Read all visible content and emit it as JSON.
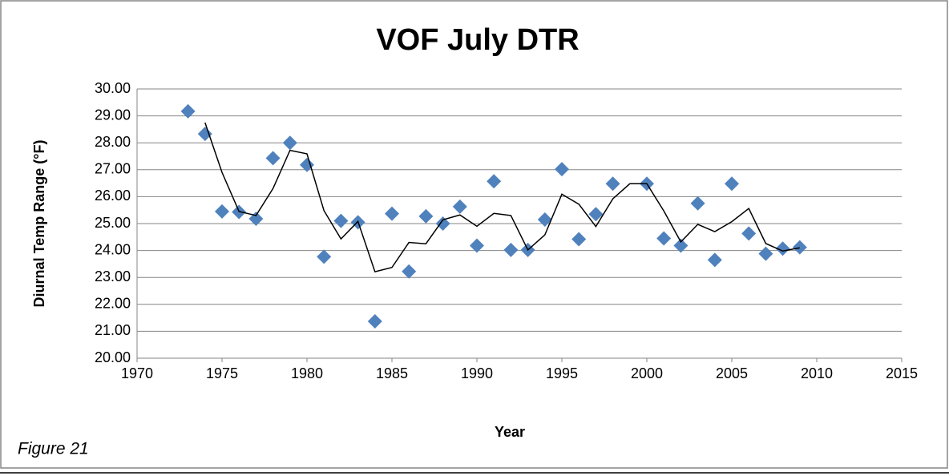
{
  "chart_data": {
    "type": "scatter",
    "title": "VOF July DTR",
    "xlabel": "Year",
    "ylabel": "Diurnal Temp Range (°F)",
    "caption": "Figure 21",
    "x": [
      1973,
      1974,
      1975,
      1976,
      1977,
      1978,
      1979,
      1980,
      1981,
      1982,
      1983,
      1984,
      1985,
      1986,
      1987,
      1988,
      1989,
      1990,
      1991,
      1992,
      1993,
      1994,
      1995,
      1996,
      1997,
      1998,
      1999,
      2000,
      2001,
      2002,
      2003,
      2004,
      2005,
      2006,
      2007,
      2008,
      2009
    ],
    "series": [
      {
        "kind": "points",
        "color": "#4f81bd",
        "values": [
          29.17,
          28.33,
          25.45,
          25.43,
          25.18,
          27.43,
          28.0,
          27.18,
          23.77,
          25.1,
          25.05,
          21.37,
          25.37,
          23.22,
          25.27,
          25.0,
          25.63,
          24.18,
          26.57,
          24.02,
          24.02,
          25.15,
          27.02,
          24.42,
          25.35,
          26.48,
          null,
          26.48,
          24.45,
          24.18,
          25.75,
          23.65,
          26.48,
          24.63,
          23.88,
          24.07,
          24.12
        ]
      },
      {
        "kind": "line",
        "color": "#000000",
        "values": [
          null,
          28.75,
          26.9,
          25.45,
          25.3,
          26.3,
          27.72,
          27.59,
          25.48,
          24.43,
          25.08,
          23.21,
          23.37,
          24.3,
          24.25,
          25.14,
          25.32,
          24.9,
          25.38,
          25.3,
          24.02,
          24.58,
          26.09,
          25.72,
          24.89,
          25.92,
          26.48,
          26.48,
          25.47,
          24.32,
          24.97,
          24.7,
          25.07,
          25.56,
          24.26,
          23.98,
          24.1
        ]
      }
    ],
    "xlim": [
      1970,
      2015
    ],
    "xticks": [
      1970,
      1975,
      1980,
      1985,
      1990,
      1995,
      2000,
      2005,
      2010,
      2015
    ],
    "ylim": [
      20,
      30
    ],
    "yticks": [
      {
        "value": 20,
        "label": "20.00"
      },
      {
        "value": 21,
        "label": "21.00"
      },
      {
        "value": 22,
        "label": "22.00"
      },
      {
        "value": 23,
        "label": "23.00"
      },
      {
        "value": 24,
        "label": "24.00"
      },
      {
        "value": 25,
        "label": "25.00"
      },
      {
        "value": 26,
        "label": "26.00"
      },
      {
        "value": 27,
        "label": "27.00"
      },
      {
        "value": 28,
        "label": "28.00"
      },
      {
        "value": 29,
        "label": "29.00"
      },
      {
        "value": 30,
        "label": "30.00"
      }
    ],
    "grid": true
  }
}
